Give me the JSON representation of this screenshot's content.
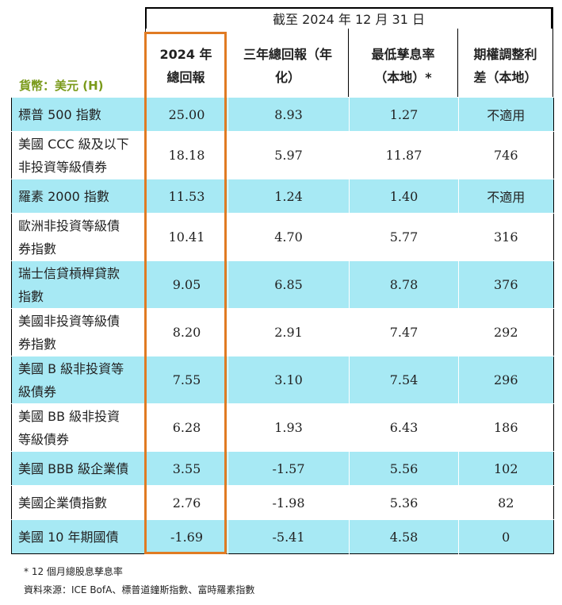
{
  "header": {
    "as_of": "截至 2024 年 12 月 31 日",
    "currency": "貨幣：美元 (H)",
    "columns": [
      [
        "2024 年",
        "總回報"
      ],
      [
        "三年總回報（年",
        "化）"
      ],
      [
        "最低孳息率",
        "（本地）*"
      ],
      [
        "期權調整利",
        "差（本地）"
      ]
    ]
  },
  "rows": [
    {
      "name": [
        "標普 500 指數"
      ],
      "ret2024": "25.00",
      "ret3y": "8.93",
      "ytw": "1.27",
      "oas": "不適用"
    },
    {
      "name": [
        "美國 CCC 級及以下",
        "非投資等級債券"
      ],
      "ret2024": "18.18",
      "ret3y": "5.97",
      "ytw": "11.87",
      "oas": "746"
    },
    {
      "name": [
        "羅素 2000 指數"
      ],
      "ret2024": "11.53",
      "ret3y": "1.24",
      "ytw": "1.40",
      "oas": "不適用"
    },
    {
      "name": [
        "歐洲非投資等級債",
        "券指數"
      ],
      "ret2024": "10.41",
      "ret3y": "4.70",
      "ytw": "5.77",
      "oas": "316"
    },
    {
      "name": [
        "瑞士信貸槓桿貸款",
        "指數"
      ],
      "ret2024": "9.05",
      "ret3y": "6.85",
      "ytw": "8.78",
      "oas": "376"
    },
    {
      "name": [
        "美國非投資等級債",
        "券指數"
      ],
      "ret2024": "8.20",
      "ret3y": "2.91",
      "ytw": "7.47",
      "oas": "292"
    },
    {
      "name": [
        "美國 B 級非投資等",
        "級債券"
      ],
      "ret2024": "7.55",
      "ret3y": "3.10",
      "ytw": "7.54",
      "oas": "296"
    },
    {
      "name": [
        "美國 BB 級非投資",
        "等級債券"
      ],
      "ret2024": "6.28",
      "ret3y": "1.93",
      "ytw": "6.43",
      "oas": "186"
    },
    {
      "name": [
        "美國 BBB 級企業債"
      ],
      "ret2024": "3.55",
      "ret3y": "-1.57",
      "ytw": "5.56",
      "oas": "102"
    },
    {
      "name": [
        "美國企業債指數"
      ],
      "ret2024": "2.76",
      "ret3y": "-1.98",
      "ytw": "5.36",
      "oas": "82"
    },
    {
      "name": [
        "美國 10 年期國債"
      ],
      "ret2024": "-1.69",
      "ret3y": "-5.41",
      "ytw": "4.58",
      "oas": "0"
    }
  ],
  "footnotes": {
    "note": "* 12 個月總股息孳息率",
    "source": "資料來源：ICE BofA、標普道鐘斯指數、富時羅素指數"
  },
  "colors": {
    "row_band": "#a7e9f4",
    "highlight": "#e07b23",
    "currency_label": "#7a9a1a"
  }
}
